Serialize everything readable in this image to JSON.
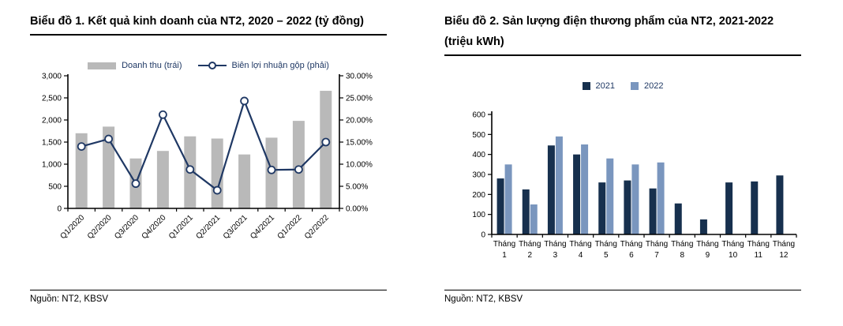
{
  "page": {
    "background": "#ffffff",
    "text_color": "#000000",
    "accent_navy": "#1f3864"
  },
  "chart_data": [
    {
      "type": "combo_bar_line",
      "title": "Biểu đồ 1. Kết quả kinh doanh của NT2, 2020 – 2022 (tỷ đồng)",
      "source": "Nguồn: NT2, KBSV",
      "grid": false,
      "legend_position": "top",
      "categories": [
        "Q1/2020",
        "Q2/2020",
        "Q3/2020",
        "Q4/2020",
        "Q1/2021",
        "Q2/2021",
        "Q3/2021",
        "Q4/2021",
        "Q1/2022",
        "Q2/2022"
      ],
      "series": [
        {
          "name": "Doanh thu (trái)",
          "type": "bar",
          "axis": "left",
          "color": "#b9b9b9",
          "values": [
            1700,
            1850,
            1130,
            1300,
            1630,
            1580,
            1220,
            1600,
            1980,
            2660
          ]
        },
        {
          "name": "Biên lợi nhuận gộp (phải)",
          "type": "line",
          "axis": "right",
          "color": "#1f3864",
          "marker": "open-circle",
          "values": [
            14.0,
            15.7,
            5.6,
            21.2,
            8.8,
            4.1,
            24.3,
            8.7,
            8.8,
            15.0
          ]
        }
      ],
      "left_axis": {
        "min": 0,
        "max": 3000,
        "step": 500,
        "tick_labels": [
          "0",
          "500",
          "1,000",
          "1,500",
          "2,000",
          "2,500",
          "3,000"
        ]
      },
      "right_axis": {
        "min": 0,
        "max": 30,
        "step": 5,
        "tick_labels": [
          "0.00%",
          "5.00%",
          "10.00%",
          "15.00%",
          "20.00%",
          "25.00%",
          "30.00%"
        ]
      }
    },
    {
      "type": "bar",
      "title": "Biểu đồ 2. Sản lượng điện thương phẩm của NT2, 2021-2022 (triệu kWh)",
      "source": "Nguồn: NT2, KBSV",
      "grid": false,
      "legend_position": "top",
      "categories": [
        "Tháng 1",
        "Tháng 2",
        "Tháng 3",
        "Tháng 4",
        "Tháng 5",
        "Tháng 6",
        "Tháng 7",
        "Tháng 8",
        "Tháng 9",
        "Tháng 10",
        "Tháng 11",
        "Tháng 12"
      ],
      "series": [
        {
          "name": "2021",
          "color": "#17304e",
          "values": [
            280,
            225,
            445,
            400,
            260,
            270,
            230,
            155,
            75,
            260,
            265,
            295
          ]
        },
        {
          "name": "2022",
          "color": "#7a96be",
          "values": [
            350,
            150,
            490,
            450,
            380,
            350,
            360,
            null,
            null,
            null,
            null,
            null
          ]
        }
      ],
      "y_axis": {
        "min": 0,
        "max": 600,
        "step": 100,
        "tick_labels": [
          "0",
          "100",
          "200",
          "300",
          "400",
          "500",
          "600"
        ]
      }
    }
  ]
}
